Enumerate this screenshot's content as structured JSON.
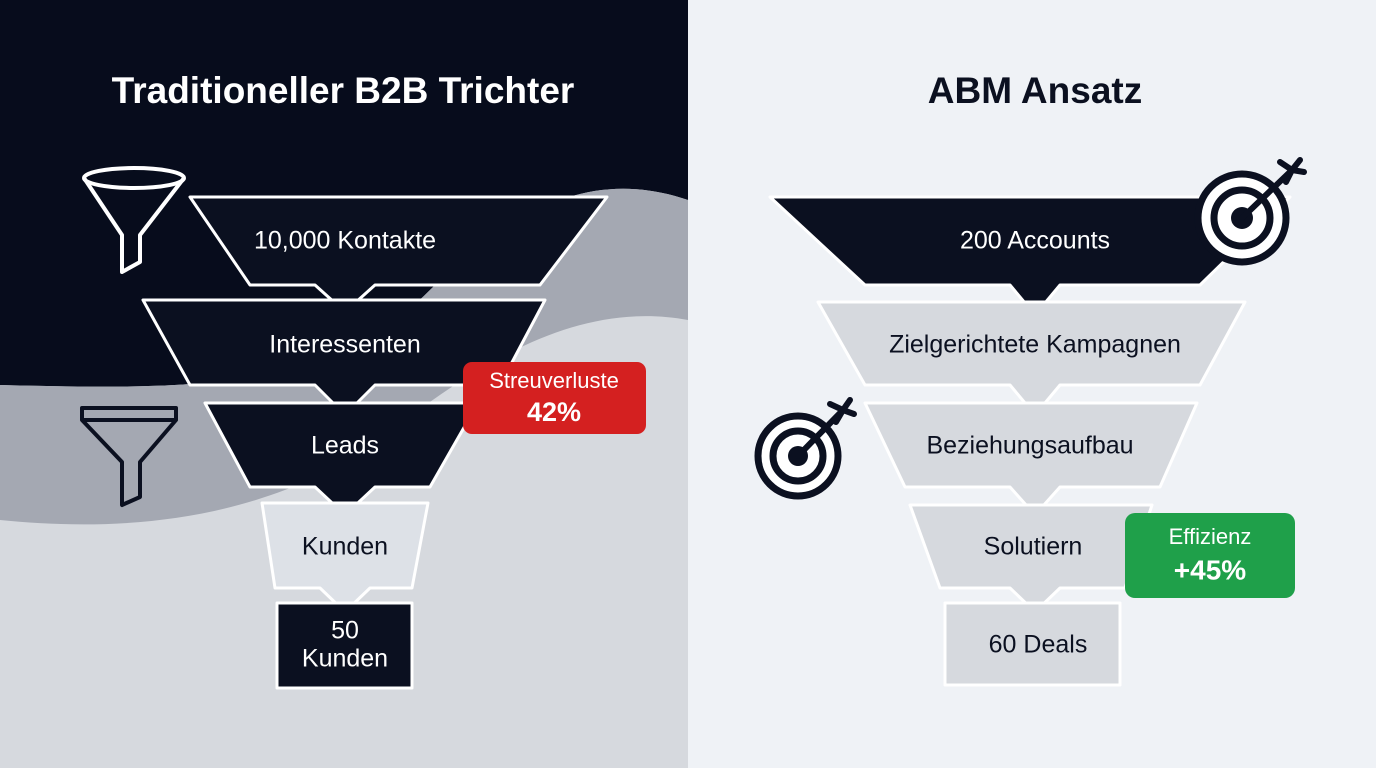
{
  "left": {
    "title": "Traditioneller B2B Trichter",
    "stages": [
      "10,000 Kontakte",
      "Interessenten",
      "Leads",
      "Kunden"
    ],
    "final_stage": [
      "50",
      "Kunden"
    ],
    "badge": {
      "label": "Streuverluste",
      "value": "42%"
    }
  },
  "right": {
    "title": "ABM Ansatz",
    "stages": [
      "200 Accounts",
      "Zielgerichtete Kampagnen",
      "Beziehungsaufbau",
      "Solutiern"
    ],
    "final_stage": "60 Deals",
    "badge": {
      "label": "Effizienz",
      "value": "+45%"
    }
  }
}
